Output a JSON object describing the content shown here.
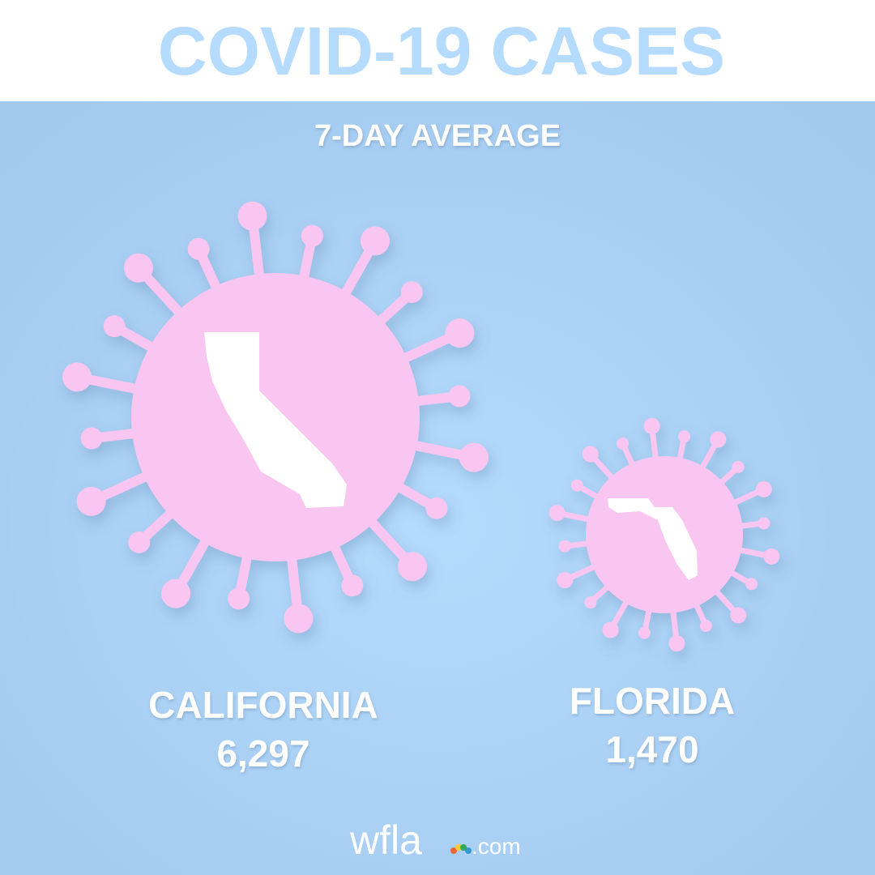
{
  "header": {
    "title": "COVID-19 CASES"
  },
  "subtitle": "7-DAY AVERAGE",
  "items": [
    {
      "name": "CALIFORNIA",
      "value": "6,297"
    },
    {
      "name": "FLORIDA",
      "value": "1,470"
    }
  ],
  "logo": {
    "brand": "wfla",
    "suffix": ".com"
  }
}
